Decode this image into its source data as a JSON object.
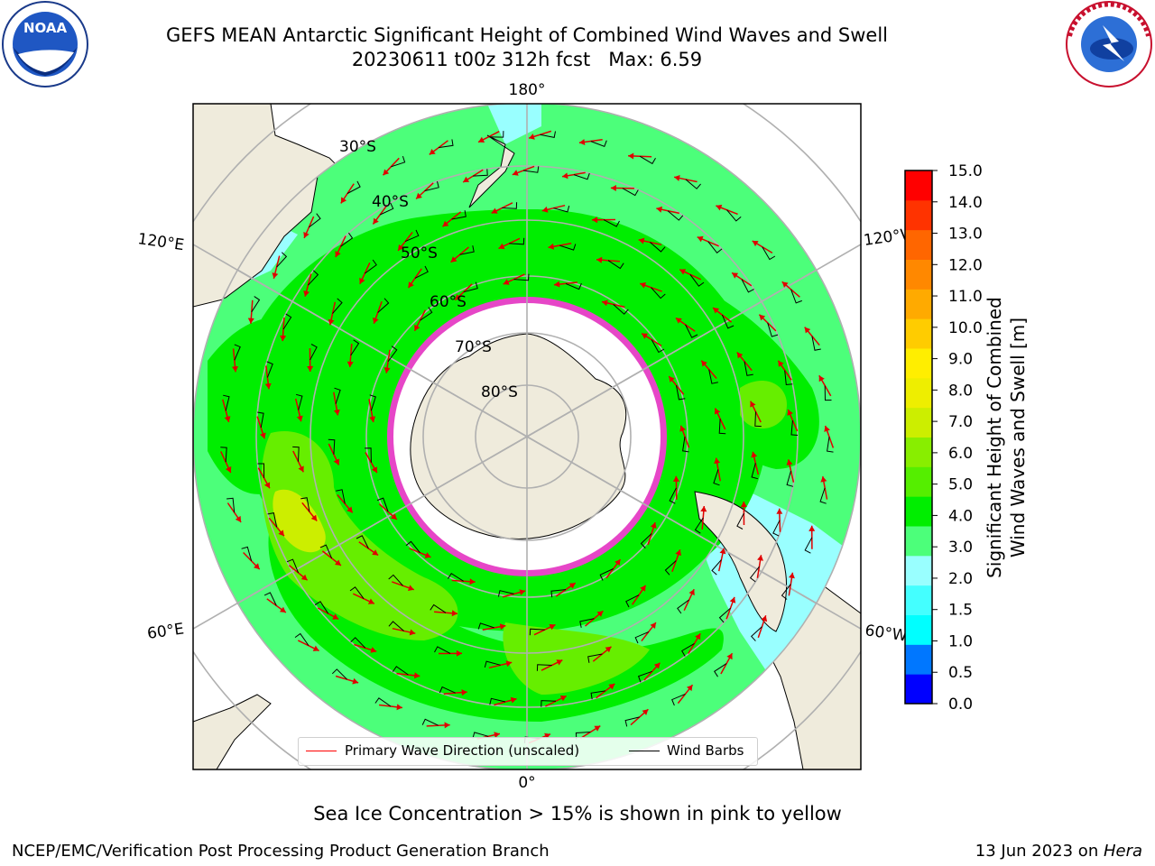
{
  "header": {
    "title_line1": "GEFS MEAN Antarctic Significant Height of Combined Wind Waves and Swell",
    "title_line2": "20230611 t00z 312h fcst   Max: 6.59"
  },
  "logos": {
    "left": {
      "name": "NOAA",
      "text": "NOAA",
      "ring_text": "NATIONAL OCEANIC AND ATMOSPHERIC ADMINISTRATION • U.S. DEPARTMENT OF COMMERCE"
    },
    "right": {
      "name": "National Weather Service",
      "ring_text": "NATIONAL WEATHER SERVICE"
    }
  },
  "map": {
    "projection": "south-polar-stereographic",
    "longitude_labels": {
      "top": "180°",
      "bottom": "0°",
      "upper_left": "120°E",
      "upper_right": "120°W",
      "lower_left": "60°E",
      "lower_right": "60°W"
    },
    "latitude_labels": [
      "30°S",
      "40°S",
      "50°S",
      "60°S",
      "70°S",
      "80°S"
    ],
    "colors": {
      "land": "#efebdc",
      "ice": "#ffffff",
      "wave_3_4": "#4cff7a",
      "wave_4_5": "#00ee00",
      "wave_5_6": "#66ee00",
      "wave_6_7": "#ccee00",
      "wave_2_3": "#99ffff",
      "wave_1_2": "#33ffff",
      "sea_ice": "#ff33dd",
      "arrow": "#ff0000",
      "barb": "#000000",
      "grid": "#b0b0b0"
    }
  },
  "legend": {
    "primary_wave_label": "Primary Wave Direction (unscaled)",
    "wind_barb_label": "Wind Barbs"
  },
  "colorbar": {
    "label_line1": "Significant Height of Combined",
    "label_line2": "Wind Waves and Swell [m]",
    "ticks": [
      "15.0",
      "14.0",
      "13.0",
      "12.0",
      "11.0",
      "10.0",
      "9.0",
      "8.0",
      "7.0",
      "6.0",
      "5.0",
      "4.0",
      "3.0",
      "2.0",
      "1.5",
      "1.0",
      "0.5",
      "0.0"
    ],
    "colors_bottom_to_top": [
      "#0000ff",
      "#0077ff",
      "#00ffff",
      "#44ffff",
      "#99ffff",
      "#4cff7a",
      "#00ee00",
      "#55ee00",
      "#88ee00",
      "#ccee00",
      "#eeee00",
      "#ffee00",
      "#ffcc00",
      "#ffaa00",
      "#ff8800",
      "#ff6600",
      "#ff3300",
      "#ff0000"
    ]
  },
  "caption": "Sea Ice Concentration > 15% is shown in pink to yellow",
  "footer": {
    "left": "NCEP/EMC/Verification Post Processing Product Generation Branch",
    "right_date": "13 Jun 2023 on ",
    "right_host": "Hera"
  }
}
